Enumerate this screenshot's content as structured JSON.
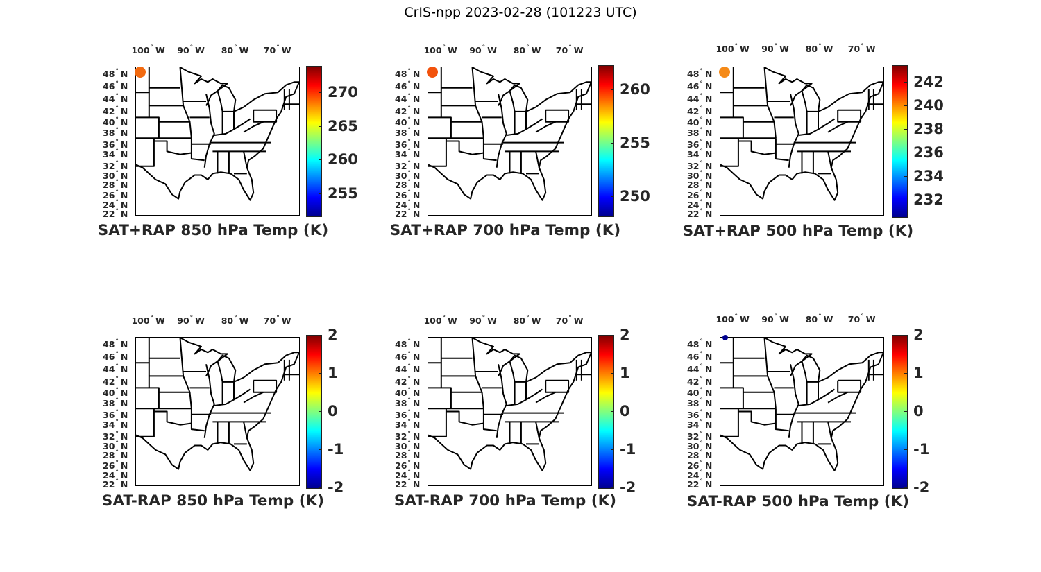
{
  "figure_title": "CrIS-npp 2023-02-28 (101223 UTC)",
  "lon_labels": [
    "100",
    "90",
    "80",
    "70"
  ],
  "lon_suffix": "W",
  "lat_labels": [
    "48",
    "46",
    "44",
    "42",
    "40",
    "38",
    "36",
    "34",
    "32",
    "30",
    "28",
    "26",
    "24",
    "22"
  ],
  "lat_suffix": "N",
  "colormap": "jet",
  "panels": [
    {
      "title": "SAT+RAP 850 hPa Temp (K)",
      "clim": [
        251.7,
        273.9
      ],
      "ticks": [
        "255",
        "260",
        "265",
        "270"
      ],
      "marker": {
        "color": "#f26a10",
        "location": "top-left (~49N, ~104W)"
      }
    },
    {
      "title": "SAT+RAP 700 hPa Temp (K)",
      "clim": [
        248.2,
        262.3
      ],
      "ticks": [
        "250",
        "255",
        "260"
      ],
      "marker": {
        "color": "#f2520c",
        "location": "top-left (~49N, ~104W)"
      }
    },
    {
      "title": "SAT+RAP 500 hPa Temp (K)",
      "clim": [
        230.6,
        243.4
      ],
      "ticks": [
        "232",
        "234",
        "236",
        "238",
        "240",
        "242"
      ],
      "marker": {
        "color": "#f58a18",
        "location": "top-left (~49N, ~104W)"
      }
    },
    {
      "title": "SAT-RAP 850 hPa Temp (K)",
      "clim": [
        -2,
        2
      ],
      "ticks": [
        "-2",
        "-1",
        "0",
        "1",
        "2"
      ],
      "marker": null
    },
    {
      "title": "SAT-RAP 700 hPa Temp (K)",
      "clim": [
        -2,
        2
      ],
      "ticks": [
        "-2",
        "-1",
        "0",
        "1",
        "2"
      ],
      "marker": null
    },
    {
      "title": "SAT-RAP 500 hPa Temp (K)",
      "clim": [
        -2,
        2
      ],
      "ticks": [
        "-2",
        "-1",
        "0",
        "1",
        "2"
      ],
      "marker": {
        "color": "#00008f",
        "location": "top-left (~49N, ~104W)"
      }
    }
  ]
}
